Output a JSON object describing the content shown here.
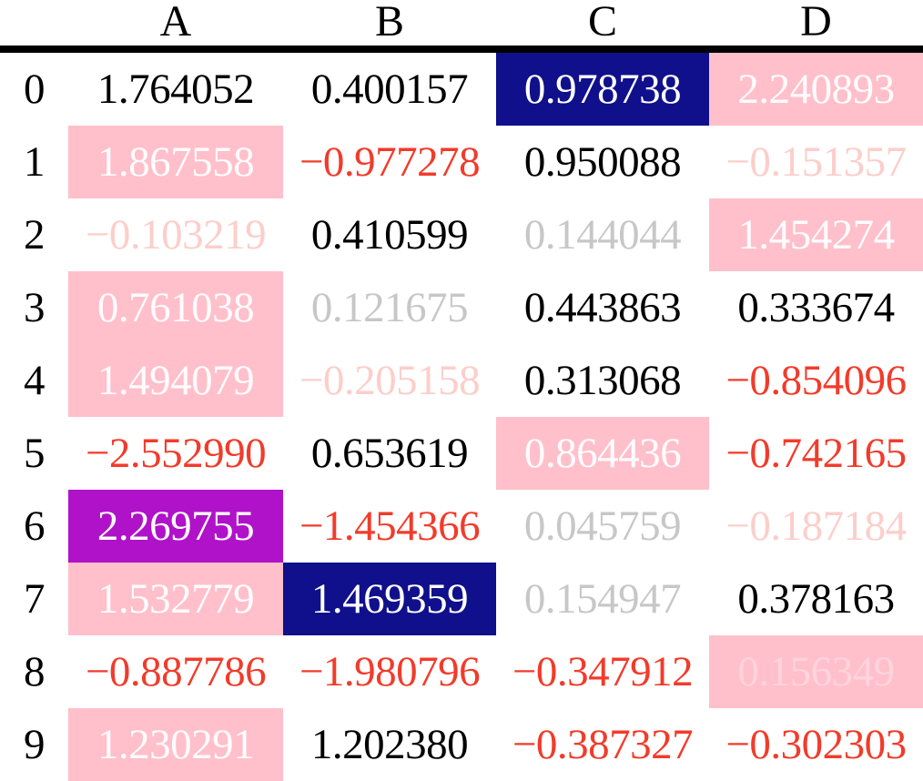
{
  "colors": {
    "black": "#000000",
    "red": "#f23b2b",
    "pink": "#ffc0cb",
    "darkblue": "#10108c",
    "purple": "#b012c9",
    "white": "#ffffff"
  },
  "chart_data": {
    "type": "table",
    "title": "",
    "columns": [
      "A",
      "B",
      "C",
      "D"
    ],
    "index": [
      "0",
      "1",
      "2",
      "3",
      "4",
      "5",
      "6",
      "7",
      "8",
      "9"
    ],
    "values": [
      [
        1.764052,
        0.400157,
        0.978738,
        2.240893
      ],
      [
        1.867558,
        -0.977278,
        0.950088,
        -0.151357
      ],
      [
        -0.103219,
        0.410599,
        0.144044,
        1.454274
      ],
      [
        0.761038,
        0.121675,
        0.443863,
        0.333674
      ],
      [
        1.494079,
        -0.205158,
        0.313068,
        -0.854096
      ],
      [
        -2.55299,
        0.653619,
        0.864436,
        -0.742165
      ],
      [
        2.269755,
        -1.454366,
        0.045759,
        -0.187184
      ],
      [
        1.532779,
        1.469359,
        0.154947,
        0.378163
      ],
      [
        -0.887786,
        -1.980796,
        -0.347912,
        0.156349
      ],
      [
        1.230291,
        1.20238,
        -0.387327,
        -0.302303
      ]
    ],
    "style_rules": {
      "negative_value_text": "#f23b2b",
      "abs_value_below_0.3_text": "20% opacity",
      "column_max_cell": "white text on #10108c",
      "row_max_cell": "white text on #ffc0cb",
      "table_max_cell": "white text on #b012c9"
    }
  },
  "table": {
    "columns": [
      "A",
      "B",
      "C",
      "D"
    ],
    "rows": [
      {
        "index": "0",
        "cells": [
          {
            "value": "1.764052",
            "style": "black"
          },
          {
            "value": "0.400157",
            "style": "black"
          },
          {
            "value": "0.978738",
            "style": "col-max"
          },
          {
            "value": "2.240893",
            "style": "row-max"
          }
        ]
      },
      {
        "index": "1",
        "cells": [
          {
            "value": "1.867558",
            "style": "row-max"
          },
          {
            "value": "−0.977278",
            "style": "red"
          },
          {
            "value": "0.950088",
            "style": "black"
          },
          {
            "value": "−0.151357",
            "style": "faded-red"
          }
        ]
      },
      {
        "index": "2",
        "cells": [
          {
            "value": "−0.103219",
            "style": "faded-red"
          },
          {
            "value": "0.410599",
            "style": "black"
          },
          {
            "value": "0.144044",
            "style": "faded-black"
          },
          {
            "value": "1.454274",
            "style": "row-max"
          }
        ]
      },
      {
        "index": "3",
        "cells": [
          {
            "value": "0.761038",
            "style": "row-max"
          },
          {
            "value": "0.121675",
            "style": "faded-black"
          },
          {
            "value": "0.443863",
            "style": "black"
          },
          {
            "value": "0.333674",
            "style": "black"
          }
        ]
      },
      {
        "index": "4",
        "cells": [
          {
            "value": "1.494079",
            "style": "row-max"
          },
          {
            "value": "−0.205158",
            "style": "faded-red"
          },
          {
            "value": "0.313068",
            "style": "black"
          },
          {
            "value": "−0.854096",
            "style": "red"
          }
        ]
      },
      {
        "index": "5",
        "cells": [
          {
            "value": "−2.552990",
            "style": "red"
          },
          {
            "value": "0.653619",
            "style": "black"
          },
          {
            "value": "0.864436",
            "style": "row-max"
          },
          {
            "value": "−0.742165",
            "style": "red"
          }
        ]
      },
      {
        "index": "6",
        "cells": [
          {
            "value": "2.269755",
            "style": "grand-max"
          },
          {
            "value": "−1.454366",
            "style": "red"
          },
          {
            "value": "0.045759",
            "style": "faded-black"
          },
          {
            "value": "−0.187184",
            "style": "faded-red"
          }
        ]
      },
      {
        "index": "7",
        "cells": [
          {
            "value": "1.532779",
            "style": "row-max"
          },
          {
            "value": "1.469359",
            "style": "col-max"
          },
          {
            "value": "0.154947",
            "style": "faded-black"
          },
          {
            "value": "0.378163",
            "style": "black"
          }
        ]
      },
      {
        "index": "8",
        "cells": [
          {
            "value": "−0.887786",
            "style": "red"
          },
          {
            "value": "−1.980796",
            "style": "red"
          },
          {
            "value": "−0.347912",
            "style": "red"
          },
          {
            "value": "0.156349",
            "style": "row-max-faded"
          }
        ]
      },
      {
        "index": "9",
        "cells": [
          {
            "value": "1.230291",
            "style": "row-max"
          },
          {
            "value": "1.202380",
            "style": "black"
          },
          {
            "value": "−0.387327",
            "style": "red"
          },
          {
            "value": "−0.302303",
            "style": "red"
          }
        ]
      }
    ]
  }
}
